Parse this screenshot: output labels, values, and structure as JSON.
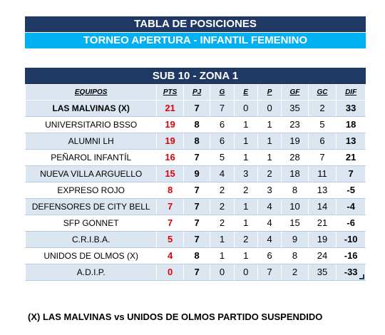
{
  "header": {
    "title": "TABLA DE POSICIONES",
    "subtitle": "TORNEO APERTURA -  INFANTIL FEMENINO"
  },
  "zone": {
    "title": "SUB 10 - ZONA 1"
  },
  "columns": {
    "team": "EQUIPOS",
    "pts": "PTS",
    "pj": "PJ",
    "g": "G",
    "e": "E",
    "p": "P",
    "gf": "GF",
    "gc": "GC",
    "dif": "DIF"
  },
  "rows": [
    {
      "team": "LAS MALVINAS (X)",
      "pts": "21",
      "pj": "7",
      "g": "7",
      "e": "0",
      "p": "0",
      "gf": "35",
      "gc": "2",
      "dif": "33"
    },
    {
      "team": "UNIVERSITARIO BSSO",
      "pts": "19",
      "pj": "8",
      "g": "6",
      "e": "1",
      "p": "1",
      "gf": "23",
      "gc": "5",
      "dif": "18"
    },
    {
      "team": "ALUMNI LH",
      "pts": "19",
      "pj": "8",
      "g": "6",
      "e": "1",
      "p": "1",
      "gf": "19",
      "gc": "6",
      "dif": "13"
    },
    {
      "team": "PEÑAROL INFANTÍL",
      "pts": "16",
      "pj": "7",
      "g": "5",
      "e": "1",
      "p": "1",
      "gf": "28",
      "gc": "7",
      "dif": "21"
    },
    {
      "team": "NUEVA VILLA ARGUELLO",
      "pts": "15",
      "pj": "9",
      "g": "4",
      "e": "3",
      "p": "2",
      "gf": "18",
      "gc": "11",
      "dif": "7"
    },
    {
      "team": "EXPRESO ROJO",
      "pts": "8",
      "pj": "7",
      "g": "2",
      "e": "2",
      "p": "3",
      "gf": "8",
      "gc": "13",
      "dif": "-5"
    },
    {
      "team": "DEFENSORES DE CITY BELL",
      "pts": "7",
      "pj": "7",
      "g": "2",
      "e": "1",
      "p": "4",
      "gf": "10",
      "gc": "14",
      "dif": "-4"
    },
    {
      "team": "SFP GONNET",
      "pts": "7",
      "pj": "7",
      "g": "2",
      "e": "1",
      "p": "4",
      "gf": "15",
      "gc": "21",
      "dif": "-6"
    },
    {
      "team": "C.R.I.B.A.",
      "pts": "5",
      "pj": "7",
      "g": "1",
      "e": "2",
      "p": "4",
      "gf": "9",
      "gc": "19",
      "dif": "-10"
    },
    {
      "team": "UNIDOS DE OLMOS (X)",
      "pts": "4",
      "pj": "8",
      "g": "1",
      "e": "1",
      "p": "6",
      "gf": "8",
      "gc": "24",
      "dif": "-16"
    },
    {
      "team": "A.D.I.P.",
      "pts": "0",
      "pj": "7",
      "g": "0",
      "e": "0",
      "p": "7",
      "gf": "2",
      "gc": "35",
      "dif": "-33"
    }
  ],
  "footnote": "(X) LAS MALVINAS vs UNIDOS DE OLMOS PARTIDO SUSPENDIDO"
}
